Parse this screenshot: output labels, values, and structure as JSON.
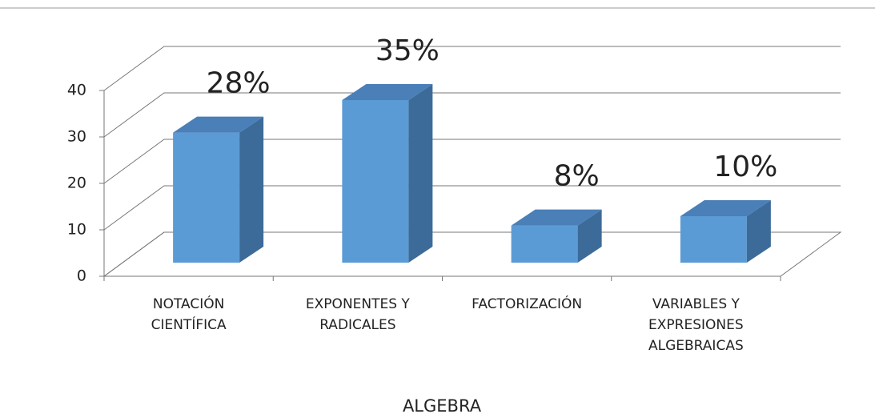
{
  "chart_data": {
    "type": "bar3d",
    "categories": [
      "NOTACIÓN CIENTÍFICA",
      "EXPONENTES Y RADICALES",
      "FACTORIZACIÓN",
      "VARIABLES Y EXPRESIONES ALGEBRAICAS"
    ],
    "values": [
      28,
      35,
      8,
      10
    ],
    "value_labels": [
      "28%",
      "35%",
      "8%",
      "10%"
    ],
    "color": "#5b9bd5",
    "xlabel": "ALGEBRA",
    "ylim": [
      0,
      40
    ],
    "yticks": [
      0,
      10,
      20,
      30,
      40
    ],
    "grid": true
  }
}
